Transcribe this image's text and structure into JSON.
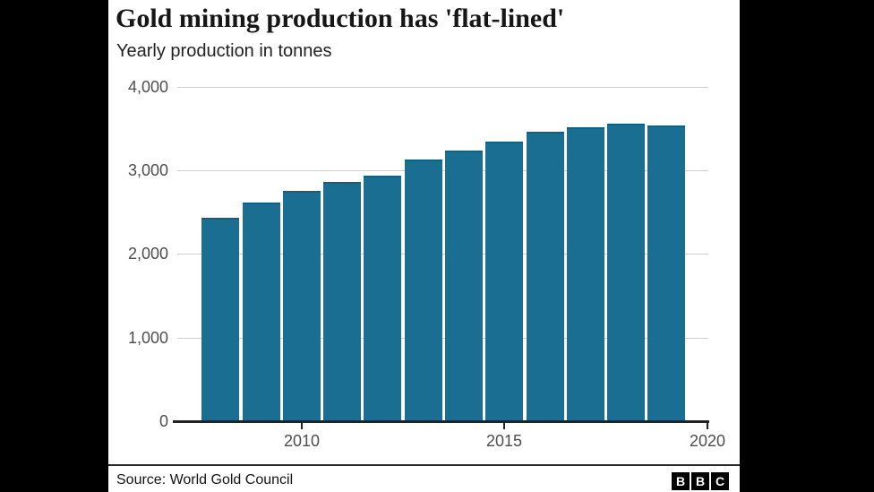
{
  "chart_data": {
    "type": "bar",
    "title": "Gold mining production has 'flat-lined'",
    "subtitle": "Yearly production in tonnes",
    "categories": [
      "2008",
      "2009",
      "2010",
      "2011",
      "2012",
      "2013",
      "2014",
      "2015",
      "2016",
      "2017",
      "2018",
      "2019"
    ],
    "values": [
      2430,
      2610,
      2750,
      2860,
      2940,
      3130,
      3240,
      3340,
      3460,
      3510,
      3560,
      3530
    ],
    "unit": "tonnes",
    "xlabel": "",
    "ylabel": "",
    "ylim": [
      0,
      4000
    ],
    "yticks": [
      0,
      1000,
      2000,
      3000,
      4000
    ],
    "ytick_labels": [
      "0",
      "1,000",
      "2,000",
      "3,000",
      "4,000"
    ],
    "xticks": [
      2010,
      2015,
      2020
    ],
    "xtick_labels": [
      "2010",
      "2015",
      "2020"
    ],
    "grid": true,
    "legend": false,
    "bar_color": "#1a6e91",
    "bar_edge_color": "#15607f",
    "gridline_color": "#cfcfcf",
    "axis_color": "#222222",
    "tick_label_color": "#4d4d4d"
  },
  "footer": {
    "source": "Source: World Gold Council",
    "logo_letters": [
      "B",
      "B",
      "C"
    ]
  }
}
